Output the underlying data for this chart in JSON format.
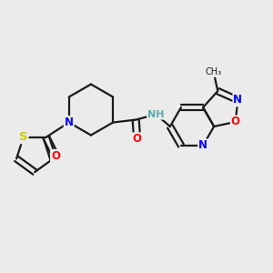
{
  "background_color": "#ebebeb",
  "bond_color": "#1a1a1a",
  "bond_width": 1.6,
  "atom_colors": {
    "N": "#0000ff",
    "O": "#ff0000",
    "S": "#cccc00",
    "NH": "#5aaaaa",
    "C": "#1a1a1a"
  },
  "font_size": 8.5,
  "fig_width": 3.0,
  "fig_height": 3.0,
  "dpi": 100
}
